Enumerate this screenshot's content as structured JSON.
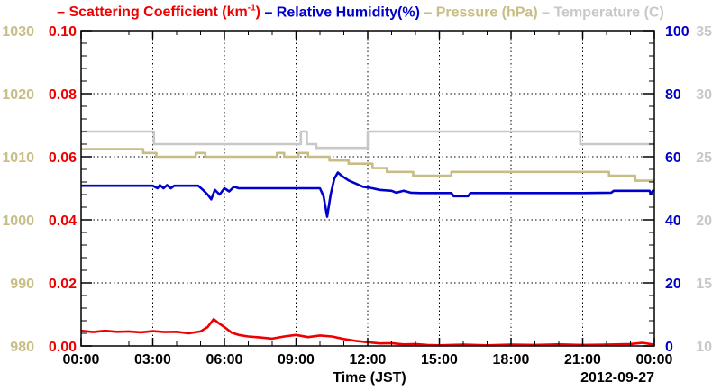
{
  "chart_data": {
    "type": "line",
    "legend": {
      "placement": "top",
      "prefix": "– ",
      "entries": [
        {
          "key": "scattering",
          "name": "Scattering Coefficient",
          "unit_pre": "(km",
          "unit_sup": "-1",
          "unit_post": ")",
          "color": "#ee0000"
        },
        {
          "key": "humidity",
          "name": "Relative Humidity(%)",
          "color": "#0000cc"
        },
        {
          "key": "pressure",
          "name": "Pressure (hPa)",
          "color": "#c8bd84"
        },
        {
          "key": "temperature",
          "name": "Temperature (C)",
          "color": "#c8c8c8"
        }
      ]
    },
    "xlabel": "Time (JST)",
    "date_label": "2012-09-27",
    "x_range_hours": [
      0,
      24
    ],
    "x_ticks": [
      {
        "h": 0,
        "label": "00:00"
      },
      {
        "h": 3,
        "label": "03:00"
      },
      {
        "h": 6,
        "label": "06:00"
      },
      {
        "h": 9,
        "label": "09:00"
      },
      {
        "h": 12,
        "label": "12:00"
      },
      {
        "h": 15,
        "label": "15:00"
      },
      {
        "h": 18,
        "label": "18:00"
      },
      {
        "h": 21,
        "label": "21:00"
      },
      {
        "h": 24,
        "label": "00:00"
      }
    ],
    "grid": true,
    "axes": {
      "pressure": {
        "side": "left-outer",
        "range": [
          980,
          1030
        ],
        "ticks": [
          "980",
          "990",
          "1000",
          "1010",
          "1020",
          "1030"
        ],
        "color": "#c8bd84"
      },
      "scattering": {
        "side": "left-inner",
        "range": [
          0,
          0.1
        ],
        "ticks": [
          "0.00",
          "0.02",
          "0.04",
          "0.06",
          "0.08",
          "0.10"
        ],
        "color": "#ee0000"
      },
      "humidity": {
        "side": "right-inner",
        "range": [
          0,
          100
        ],
        "ticks": [
          "0",
          "20",
          "40",
          "60",
          "80",
          "100"
        ],
        "color": "#0000cc"
      },
      "temperature": {
        "side": "right-outer",
        "range": [
          10,
          35
        ],
        "ticks": [
          "10",
          "15",
          "20",
          "25",
          "30",
          "35"
        ],
        "color": "#c8c8c8"
      }
    },
    "series": [
      {
        "key": "temperature",
        "name": "Temperature (C)",
        "color": "#c8c8c8",
        "step": true,
        "points": [
          [
            0,
            27
          ],
          [
            3.05,
            27
          ],
          [
            3.05,
            26
          ],
          [
            9.2,
            26
          ],
          [
            9.2,
            27
          ],
          [
            9.45,
            27
          ],
          [
            9.45,
            26
          ],
          [
            9.85,
            26
          ],
          [
            9.85,
            25.7
          ],
          [
            12,
            25.7
          ],
          [
            12,
            27
          ],
          [
            20.9,
            27
          ],
          [
            20.9,
            26
          ],
          [
            24,
            26
          ]
        ]
      },
      {
        "key": "pressure",
        "name": "Pressure (hPa)",
        "color": "#c8bd84",
        "step": true,
        "points": [
          [
            0,
            1011.2
          ],
          [
            2.6,
            1011.2
          ],
          [
            2.6,
            1010.6
          ],
          [
            3.15,
            1010.6
          ],
          [
            3.15,
            1010.0
          ],
          [
            4.8,
            1010.0
          ],
          [
            4.8,
            1010.6
          ],
          [
            5.2,
            1010.6
          ],
          [
            5.2,
            1010.0
          ],
          [
            8.2,
            1010.0
          ],
          [
            8.2,
            1010.6
          ],
          [
            8.5,
            1010.6
          ],
          [
            8.5,
            1010.0
          ],
          [
            9.1,
            1010.0
          ],
          [
            9.1,
            1010.6
          ],
          [
            9.5,
            1010.6
          ],
          [
            9.5,
            1010.0
          ],
          [
            10.4,
            1010.0
          ],
          [
            10.4,
            1009.4
          ],
          [
            11.2,
            1009.4
          ],
          [
            11.2,
            1008.9
          ],
          [
            12.2,
            1008.9
          ],
          [
            12.2,
            1008.2
          ],
          [
            12.8,
            1008.2
          ],
          [
            12.8,
            1007.6
          ],
          [
            13.9,
            1007.6
          ],
          [
            13.9,
            1007.0
          ],
          [
            15.5,
            1007.0
          ],
          [
            15.5,
            1007.6
          ],
          [
            22.1,
            1007.6
          ],
          [
            22.1,
            1007.0
          ],
          [
            23.2,
            1007.0
          ],
          [
            23.2,
            1006.2
          ],
          [
            24,
            1006.2
          ]
        ]
      },
      {
        "key": "humidity",
        "name": "Relative Humidity(%)",
        "color": "#0000cc",
        "step": false,
        "points": [
          [
            0,
            50.8
          ],
          [
            3.0,
            50.8
          ],
          [
            3.2,
            50.0
          ],
          [
            3.3,
            51.0
          ],
          [
            3.45,
            50.0
          ],
          [
            3.6,
            51.0
          ],
          [
            3.75,
            50.0
          ],
          [
            3.9,
            50.8
          ],
          [
            4.9,
            50.8
          ],
          [
            5.1,
            49.5
          ],
          [
            5.3,
            48.0
          ],
          [
            5.45,
            46.5
          ],
          [
            5.6,
            49.5
          ],
          [
            5.8,
            48.0
          ],
          [
            6.0,
            50.0
          ],
          [
            6.2,
            49.0
          ],
          [
            6.4,
            50.5
          ],
          [
            6.6,
            50.0
          ],
          [
            8.2,
            50.0
          ],
          [
            10.0,
            50.0
          ],
          [
            10.15,
            47.5
          ],
          [
            10.3,
            41.0
          ],
          [
            10.45,
            48.0
          ],
          [
            10.6,
            53.0
          ],
          [
            10.75,
            55.0
          ],
          [
            10.9,
            54.0
          ],
          [
            11.2,
            52.5
          ],
          [
            11.5,
            51.5
          ],
          [
            11.8,
            50.5
          ],
          [
            12.2,
            50.0
          ],
          [
            12.5,
            49.5
          ],
          [
            13.0,
            49.2
          ],
          [
            13.2,
            48.6
          ],
          [
            13.5,
            49.2
          ],
          [
            13.8,
            48.6
          ],
          [
            14.2,
            48.5
          ],
          [
            15.5,
            48.5
          ],
          [
            15.6,
            47.5
          ],
          [
            16.2,
            47.5
          ],
          [
            16.3,
            48.5
          ],
          [
            20.5,
            48.5
          ],
          [
            21.0,
            48.5
          ],
          [
            22.2,
            48.6
          ],
          [
            22.3,
            49.2
          ],
          [
            23.8,
            49.2
          ],
          [
            23.85,
            48.2
          ],
          [
            23.95,
            49.3
          ],
          [
            24,
            49.0
          ]
        ]
      },
      {
        "key": "scattering",
        "name": "Scattering Coefficient",
        "color": "#ee0000",
        "step": false,
        "points": [
          [
            0,
            0.0048
          ],
          [
            0.5,
            0.0044
          ],
          [
            1.0,
            0.0048
          ],
          [
            1.5,
            0.0045
          ],
          [
            2.0,
            0.0046
          ],
          [
            2.5,
            0.0043
          ],
          [
            3.0,
            0.0047
          ],
          [
            3.5,
            0.0044
          ],
          [
            4.0,
            0.0045
          ],
          [
            4.5,
            0.004
          ],
          [
            5.0,
            0.0046
          ],
          [
            5.3,
            0.006
          ],
          [
            5.55,
            0.0085
          ],
          [
            5.8,
            0.007
          ],
          [
            6.0,
            0.006
          ],
          [
            6.3,
            0.0042
          ],
          [
            6.6,
            0.0035
          ],
          [
            7.0,
            0.003
          ],
          [
            7.5,
            0.0027
          ],
          [
            8.0,
            0.0023
          ],
          [
            8.5,
            0.003
          ],
          [
            9.0,
            0.0035
          ],
          [
            9.5,
            0.0028
          ],
          [
            10.0,
            0.0033
          ],
          [
            10.5,
            0.003
          ],
          [
            11.0,
            0.0022
          ],
          [
            11.5,
            0.0016
          ],
          [
            12.0,
            0.0012
          ],
          [
            12.5,
            0.0008
          ],
          [
            13.0,
            0.0009
          ],
          [
            13.5,
            0.0005
          ],
          [
            14.0,
            0.0006
          ],
          [
            14.5,
            0.0003
          ],
          [
            15.0,
            0.0002
          ],
          [
            16.0,
            0.0004
          ],
          [
            17.0,
            0.0002
          ],
          [
            18.0,
            0.0004
          ],
          [
            19.0,
            0.0003
          ],
          [
            20.0,
            0.0005
          ],
          [
            21.0,
            0.0003
          ],
          [
            22.0,
            0.0004
          ],
          [
            23.0,
            0.0006
          ],
          [
            23.5,
            0.001
          ],
          [
            24,
            0.0004
          ]
        ]
      }
    ]
  }
}
